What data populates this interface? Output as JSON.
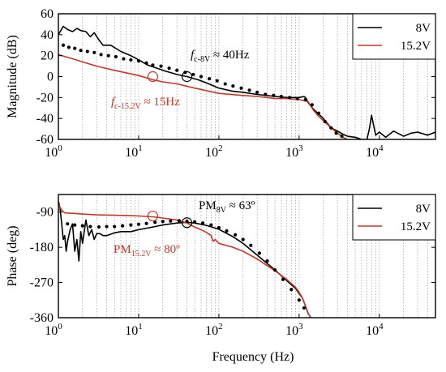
{
  "colors": {
    "s8": "#000000",
    "s15": "#c0392b"
  },
  "xaxis": {
    "label": "Frequency (Hz)",
    "scale": "log",
    "xlim": [
      1,
      50000
    ],
    "tick_labels": [
      {
        "base": "10",
        "exp": "0"
      },
      {
        "base": "10",
        "exp": "1"
      },
      {
        "base": "10",
        "exp": "2"
      },
      {
        "base": "10",
        "exp": "3"
      },
      {
        "base": "10",
        "exp": "4"
      }
    ]
  },
  "chart_data": [
    {
      "type": "line",
      "ylabel": "Magnitude (dB)",
      "ylim": [
        -60,
        60
      ],
      "yticks": [
        "60",
        "40",
        "20",
        "0",
        "-20",
        "-40",
        "-60"
      ],
      "grid": "log x gridlines",
      "legend": {
        "placement": "top-right",
        "entries": [
          "8V",
          "15.2V"
        ]
      },
      "annotations": [
        {
          "base": "f",
          "sub": "c-8V",
          "text": " ≈ 40Hz",
          "x": 40,
          "y": 0
        },
        {
          "base": "f",
          "sub": "c-15.2V",
          "text": " ≈ 15Hz",
          "x": 15,
          "y": 0
        }
      ],
      "series": [
        {
          "name": "8V",
          "style": "measured",
          "x": [
            1,
            1.15,
            1.3,
            1.5,
            1.7,
            1.9,
            2.2,
            2.5,
            2.8,
            3.2,
            3.6,
            4.5,
            6,
            8,
            10,
            13,
            17,
            22,
            30,
            40,
            55,
            70,
            100,
            150,
            200,
            300,
            500,
            700,
            1000,
            1150,
            1200,
            1300,
            1500,
            2000,
            2500,
            3000,
            3500,
            4000,
            5000,
            5500,
            6000,
            7000,
            7500,
            8000,
            9000,
            10000,
            12000,
            15000,
            20000,
            25000,
            30000,
            40000,
            50000
          ],
          "y": [
            40,
            48,
            45,
            43,
            46,
            44,
            43,
            38,
            42,
            35,
            30,
            30,
            24,
            20,
            16,
            11,
            8,
            5,
            2,
            0,
            -3,
            -6,
            -11,
            -14,
            -15,
            -17,
            -19,
            -20,
            -20,
            -19,
            -20,
            -25,
            -31,
            -40,
            -49,
            -52,
            -55,
            -57,
            -58,
            -59,
            -60,
            -60,
            -50,
            -37,
            -56,
            -53,
            -58,
            -52,
            -57,
            -54,
            -53,
            -56,
            -53
          ]
        },
        {
          "name": "15.2V",
          "style": "measured",
          "x": [
            1,
            1.5,
            2,
            3,
            5,
            10,
            15,
            20,
            30,
            50,
            100,
            200,
            300,
            500,
            700,
            1000,
            1300,
            1500,
            1700,
            2000,
            2500,
            3000,
            3500,
            4000
          ],
          "y": [
            21,
            17,
            14,
            10,
            6,
            1,
            -3,
            -5,
            -7,
            -11,
            -16,
            -18,
            -19,
            -21,
            -21,
            -22,
            -24,
            -32,
            -37,
            -42,
            -49,
            -54,
            -58,
            -60
          ]
        },
        {
          "name": "8V",
          "style": "model-dots",
          "x": [
            1.15,
            1.35,
            1.6,
            1.9,
            2.3,
            2.8,
            3.4,
            4.2,
            5.2,
            6.5,
            8,
            10,
            12.5,
            15,
            19,
            24,
            30,
            38,
            48,
            60,
            76,
            95,
            120,
            150,
            190,
            240,
            300,
            380,
            480,
            600,
            760,
            950,
            1200,
            1450,
            1750,
            2100,
            2500,
            2900,
            3400
          ],
          "y": [
            30,
            28,
            27,
            25,
            24,
            23,
            21,
            20,
            19,
            17,
            16,
            15,
            13,
            11,
            10,
            8,
            6,
            4,
            2,
            0,
            -2,
            -4,
            -7,
            -9,
            -11,
            -13,
            -15,
            -17,
            -18,
            -19,
            -20,
            -21,
            -22,
            -27,
            -35,
            -43,
            -49,
            -54,
            -57
          ]
        }
      ]
    },
    {
      "type": "line",
      "ylabel": "Phase (deg)",
      "ylim": [
        -360,
        -45
      ],
      "yticks": [
        "-90",
        "-180",
        "-270",
        "-360"
      ],
      "grid": "log x gridlines",
      "legend": {
        "placement": "top-right",
        "entries": [
          "8V",
          "15.2V"
        ]
      },
      "annotations": [
        {
          "base": "PM",
          "sub": "8V",
          "text": " ≈ 63º",
          "x": 40,
          "y": -117
        },
        {
          "base": "PM",
          "sub": "15.2V",
          "text": " ≈ 80º",
          "x": 15,
          "y": -100
        }
      ],
      "series": [
        {
          "name": "8V",
          "style": "measured",
          "x": [
            1,
            1.05,
            1.1,
            1.15,
            1.2,
            1.25,
            1.3,
            1.4,
            1.5,
            1.6,
            1.7,
            1.8,
            1.9,
            2,
            2.2,
            2.4,
            2.6,
            2.8,
            3,
            3.3,
            3.6,
            4,
            5,
            6,
            8,
            10,
            15,
            20,
            30,
            40,
            50,
            70,
            100,
            150,
            200,
            300,
            500,
            700,
            900,
            1000,
            1100,
            1200,
            1300,
            1400
          ],
          "y": [
            -62,
            -80,
            -120,
            -160,
            -150,
            -190,
            -165,
            -135,
            -120,
            -190,
            -160,
            -215,
            -140,
            -170,
            -110,
            -150,
            -135,
            -160,
            -145,
            -145,
            -150,
            -150,
            -143,
            -140,
            -140,
            -135,
            -128,
            -123,
            -118,
            -116,
            -118,
            -124,
            -134,
            -153,
            -170,
            -200,
            -238,
            -265,
            -285,
            -298,
            -310,
            -330,
            -350,
            -360
          ]
        },
        {
          "name": "15.2V",
          "style": "measured",
          "x": [
            1,
            1.1,
            1.2,
            1.5,
            2,
            3,
            5,
            8,
            10,
            15,
            20,
            30,
            40,
            50,
            60,
            70,
            80,
            85,
            90,
            100,
            150,
            200,
            300,
            500,
            700,
            900,
            1000,
            1100,
            1200,
            1300,
            1400
          ],
          "y": [
            -70,
            -85,
            -92,
            -93,
            -95,
            -97,
            -98,
            -99,
            -100,
            -102,
            -105,
            -110,
            -118,
            -128,
            -135,
            -142,
            -150,
            -165,
            -160,
            -170,
            -180,
            -190,
            -210,
            -240,
            -262,
            -282,
            -295,
            -310,
            -330,
            -350,
            -360
          ]
        },
        {
          "name": "8V",
          "style": "model-dots",
          "x": [
            1.3,
            1.6,
            2,
            2.5,
            3.2,
            4,
            5,
            6.3,
            8,
            10,
            12.5,
            16,
            20,
            25,
            32,
            40,
            50,
            63,
            80,
            100,
            125,
            160,
            200,
            250,
            320,
            400,
            500,
            630,
            800,
            1000,
            1150
          ],
          "y": [
            -120,
            -123,
            -125,
            -127,
            -128,
            -127,
            -127,
            -125,
            -123,
            -121,
            -119,
            -116,
            -114,
            -113,
            -112,
            -113,
            -115,
            -118,
            -123,
            -130,
            -138,
            -148,
            -160,
            -175,
            -195,
            -215,
            -238,
            -262,
            -288,
            -315,
            -335
          ]
        }
      ]
    }
  ]
}
